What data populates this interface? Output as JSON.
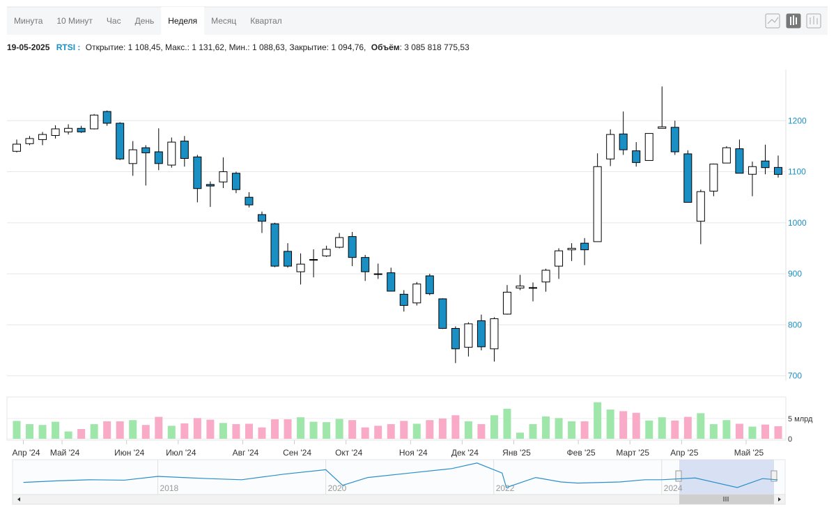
{
  "toolbar": {
    "tabs": [
      "Минута",
      "10 Минут",
      "Час",
      "День",
      "Неделя",
      "Месяц",
      "Квартал"
    ],
    "active": 4
  },
  "info": {
    "date": "19-05-2025",
    "symbol": "RTSI :",
    "ohlc": "Открытие: 1 108,45, Макс.: 1 131,62, Мин.: 1 088,63, Закрытие: 1 094,76,",
    "volume_label": "Объём",
    "volume": ": 3 085 818 775,53"
  },
  "chart_data": [
    {
      "type": "candlestick",
      "up_color": "#ffffff",
      "down_color": "#1a8fc4",
      "ylim": [
        690,
        1300
      ],
      "yticks": [
        700,
        800,
        900,
        1000,
        1100,
        1200
      ],
      "grid": true,
      "open": [
        1140,
        1155,
        1163,
        1171,
        1178,
        1185,
        1184,
        1218,
        1195,
        1116,
        1147,
        1139,
        1113,
        1160,
        1129,
        1075,
        1080,
        1097,
        1050,
        1016,
        998,
        944,
        904,
        928,
        935,
        952,
        973,
        932,
        900,
        902,
        860,
        843,
        896,
        851,
        793,
        756,
        808,
        753,
        821,
        872,
        873,
        884,
        915,
        947,
        960,
        963,
        1125,
        1174,
        1141,
        1122,
        1185,
        1187,
        1135,
        1003,
        1062,
        1117,
        1145,
        1095,
        1121,
        1108.45
      ],
      "high": [
        1163,
        1170,
        1178,
        1191,
        1193,
        1190,
        1213,
        1220,
        1197,
        1160,
        1152,
        1185,
        1167,
        1170,
        1133,
        1081,
        1128,
        1100,
        1060,
        1022,
        1000,
        960,
        940,
        948,
        955,
        980,
        982,
        937,
        920,
        912,
        868,
        884,
        900,
        852,
        797,
        805,
        820,
        815,
        878,
        898,
        883,
        910,
        950,
        960,
        970,
        1136,
        1183,
        1218,
        1158,
        1175,
        1267,
        1200,
        1142,
        1065,
        1116,
        1150,
        1163,
        1120,
        1153,
        1131.62
      ],
      "low": [
        1138,
        1152,
        1152,
        1165,
        1173,
        1176,
        1183,
        1190,
        1123,
        1092,
        1073,
        1103,
        1108,
        1110,
        1040,
        1031,
        1068,
        1058,
        1030,
        980,
        913,
        912,
        879,
        893,
        933,
        950,
        915,
        886,
        890,
        866,
        826,
        838,
        858,
        792,
        725,
        738,
        750,
        728,
        820,
        868,
        846,
        865,
        890,
        925,
        917,
        963,
        1111,
        1133,
        1110,
        1122,
        1185,
        1133,
        1040,
        958,
        1052,
        1117,
        1097,
        1052,
        1095,
        1088.63
      ],
      "close": [
        1154,
        1165,
        1173,
        1184,
        1185,
        1178,
        1211,
        1195,
        1125,
        1143,
        1137,
        1116,
        1158,
        1126,
        1067,
        1072,
        1100,
        1065,
        1035,
        1003,
        915,
        915,
        919,
        928,
        948,
        971,
        932,
        904,
        899,
        866,
        838,
        880,
        861,
        793,
        753,
        802,
        757,
        812,
        864,
        876,
        873,
        907,
        945,
        950,
        947,
        1110,
        1173,
        1143,
        1118,
        1175,
        1188,
        1139,
        1040,
        1061,
        1115,
        1147,
        1097,
        1110,
        1108,
        1094.76
      ]
    },
    {
      "type": "bar",
      "up_color": "#9fe6ab",
      "down_color": "#f8aac6",
      "ylim": [
        0,
        10.3
      ],
      "yticks": [
        0,
        {
          "value": 5,
          "label": "5 млрд"
        }
      ],
      "categories": [
        null,
        "Апр '24",
        null,
        null,
        "Май '24",
        null,
        null,
        null,
        null,
        "Июн '24",
        null,
        null,
        null,
        "Июл '24",
        null,
        null,
        null,
        null,
        "Авг '24",
        null,
        null,
        null,
        "Сен '24",
        null,
        null,
        null,
        "Окт '24",
        null,
        null,
        null,
        null,
        "Ноя '24",
        null,
        null,
        null,
        "Дек '24",
        null,
        null,
        null,
        "Янв '25",
        null,
        null,
        null,
        null,
        "Фев '25",
        null,
        null,
        null,
        "Март '25",
        null,
        null,
        null,
        "Апр '25",
        null,
        null,
        null,
        null,
        "Май '25",
        null,
        null
      ],
      "values": [
        4.4,
        3.6,
        3.4,
        4.2,
        1.8,
        2.4,
        3.6,
        4.3,
        4.3,
        4.6,
        3.4,
        5.4,
        3.2,
        3.8,
        5.1,
        4.7,
        3.9,
        3.6,
        3.7,
        2.8,
        4.8,
        4.8,
        5.3,
        4.2,
        4.1,
        4.9,
        4.6,
        2.8,
        3.2,
        3.6,
        4.4,
        3.7,
        4.6,
        5.0,
        5.8,
        4.3,
        3.6,
        5.8,
        7.4,
        1.5,
        3.6,
        5.5,
        5.1,
        4.3,
        4.3,
        9.0,
        7.2,
        6.8,
        6.4,
        4.5,
        5.3,
        4.5,
        5.4,
        6.3,
        3.6,
        4.6,
        3.7,
        3.0,
        3.5,
        3.0858
      ]
    },
    {
      "type": "line",
      "color": "#2a8ec8",
      "xlim": [
        2016.27,
        2025.47
      ],
      "ylim": [
        500,
        2000
      ],
      "xticks": [
        2018,
        2020,
        2022,
        2024
      ],
      "x": [
        2016.4,
        2016.8,
        2017.2,
        2017.6,
        2018.0,
        2018.3,
        2018.6,
        2019.0,
        2019.5,
        2020.0,
        2020.2,
        2020.5,
        2021.0,
        2021.5,
        2021.8,
        2022.1,
        2022.15,
        2022.5,
        2022.8,
        2023.0,
        2023.5,
        2023.8,
        2024.0,
        2024.4,
        2024.9,
        2025.2,
        2025.38
      ],
      "values": [
        980,
        1050,
        1100,
        1080,
        1250,
        1200,
        1150,
        1100,
        1350,
        1550,
        850,
        1200,
        1400,
        1600,
        1850,
        1400,
        750,
        1200,
        1000,
        950,
        1000,
        1100,
        1100,
        1180,
        750,
        1150,
        1095
      ]
    }
  ]
}
